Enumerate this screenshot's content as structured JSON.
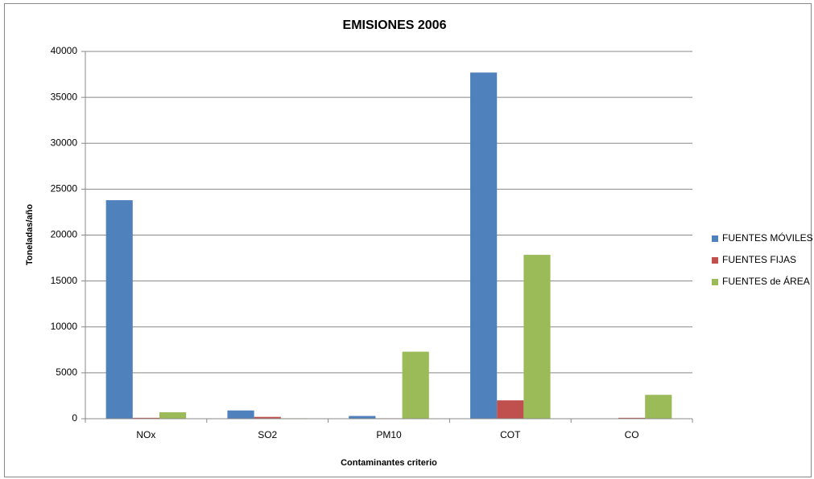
{
  "chart_data": {
    "type": "bar",
    "title": "EMISIONES 2006",
    "x_label": "Contaminantes criterio",
    "y_label": "Toneladas/año",
    "categories": [
      "NOx",
      "SO2",
      "PM10",
      "COT",
      "CO"
    ],
    "series": [
      {
        "name": "FUENTES MÓVILES",
        "color": "#4f81bd",
        "values": [
          23800,
          900,
          300,
          37700,
          0
        ]
      },
      {
        "name": "FUENTES FIJAS",
        "color": "#c0504d",
        "values": [
          100,
          200,
          50,
          2000,
          100
        ]
      },
      {
        "name": "FUENTES de ÁREA",
        "color": "#9bbb59",
        "values": [
          700,
          50,
          7300,
          17850,
          2600
        ]
      }
    ],
    "ylim": [
      0,
      40000
    ],
    "yticks": [
      0,
      5000,
      10000,
      15000,
      20000,
      25000,
      30000,
      35000,
      40000
    ],
    "grid": true,
    "legend": "right"
  }
}
